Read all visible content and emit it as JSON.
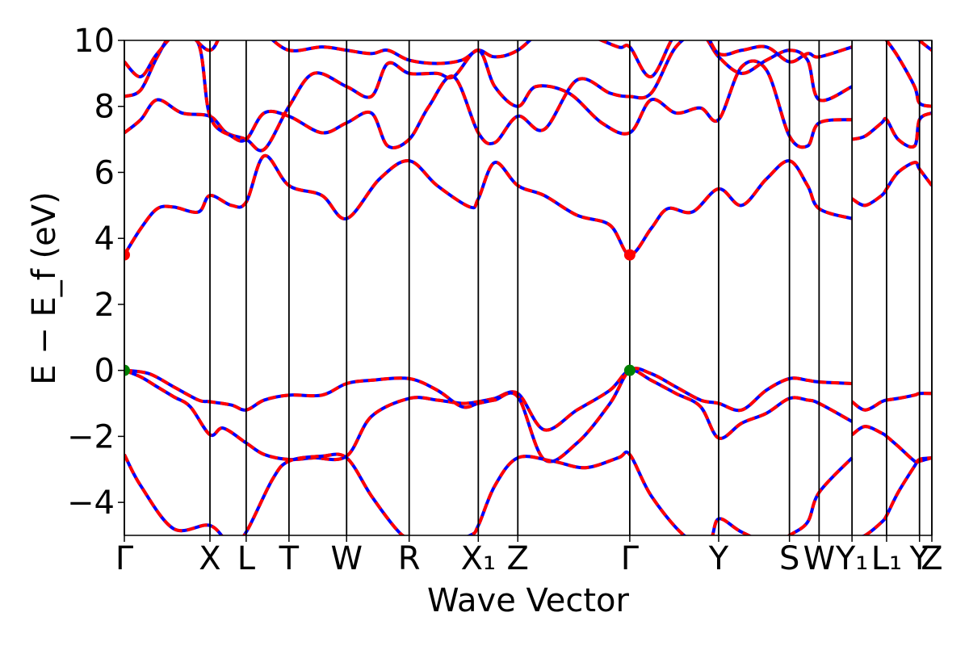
{
  "chart_data": {
    "type": "line",
    "xlabel": "Wave Vector",
    "ylabel": "E − E_f (eV)",
    "ylim": [
      -5,
      10
    ],
    "y_ticks": [
      -4,
      -2,
      0,
      2,
      4,
      6,
      8,
      10
    ],
    "y_tick_labels": [
      "−4",
      "−2",
      "0",
      "2",
      "4",
      "6",
      "8",
      "10"
    ],
    "xlim": [
      0,
      4.905
    ],
    "kpoints": [
      {
        "label": "Γ",
        "x": 0.0
      },
      {
        "label": "X",
        "x": 0.52
      },
      {
        "label": "L",
        "x": 0.74
      },
      {
        "label": "T",
        "x": 1.0
      },
      {
        "label": "W",
        "x": 1.35
      },
      {
        "label": "R",
        "x": 1.73
      },
      {
        "label": "X₁",
        "x": 2.15
      },
      {
        "label": "Z",
        "x": 2.39
      },
      {
        "label": "Γ",
        "x": 3.07
      },
      {
        "label": "Y",
        "x": 3.61
      },
      {
        "label": "S",
        "x": 4.04
      },
      {
        "label": "W",
        "x": 4.22
      },
      {
        "label": "Y₁",
        "x": 4.42
      },
      {
        "label": "L₁",
        "x": 4.63
      },
      {
        "label": "Y",
        "x": 4.83
      },
      {
        "label": "Z",
        "x": 4.905
      }
    ],
    "segment_breaks": [
      4.42
    ],
    "grid": false,
    "colors": {
      "band_solid": "#0000ff",
      "band_dashed": "#ff0000",
      "cbm_marker": "#ff0000",
      "vbm_marker": "#008000",
      "kpath_line": "#000000"
    },
    "series": [
      {
        "x": [
          0,
          0.1,
          0.2,
          0.3,
          0.4,
          0.52,
          0.6,
          0.74,
          0.85,
          1.0,
          1.15,
          1.35,
          1.5,
          1.73,
          1.9,
          2.05,
          2.15,
          2.25,
          2.39,
          2.55,
          2.75,
          2.95,
          3.07,
          3.2,
          3.35,
          3.5,
          3.61,
          3.75,
          3.9,
          4.04,
          4.15,
          4.22,
          4.42
        ],
        "values": [
          0.0,
          -0.2,
          -0.5,
          -0.8,
          -1.1,
          -1.95,
          -1.75,
          -2.2,
          -2.55,
          -2.7,
          -2.65,
          -2.6,
          -1.4,
          -0.85,
          -0.9,
          -1.0,
          -0.95,
          -0.85,
          -0.7,
          -1.8,
          -1.2,
          -0.6,
          0.0,
          -0.3,
          -0.7,
          -1.1,
          -2.05,
          -1.6,
          -1.3,
          -0.85,
          -0.9,
          -1.0,
          -1.55
        ]
      },
      {
        "x": [
          0,
          0.15,
          0.3,
          0.45,
          0.52,
          0.65,
          0.74,
          0.85,
          1.0,
          1.2,
          1.35,
          1.5,
          1.73,
          1.9,
          2.05,
          2.15,
          2.25,
          2.39,
          2.55,
          2.75,
          2.95,
          3.07,
          3.2,
          3.35,
          3.5,
          3.61,
          3.75,
          3.9,
          4.04,
          4.15,
          4.22,
          4.42
        ],
        "values": [
          0.0,
          -0.1,
          -0.5,
          -0.9,
          -0.95,
          -1.05,
          -1.2,
          -0.9,
          -0.75,
          -0.75,
          -0.4,
          -0.3,
          -0.25,
          -0.6,
          -1.1,
          -1.0,
          -0.9,
          -0.8,
          -2.7,
          -2.2,
          -1.0,
          0.0,
          -0.1,
          -0.5,
          -0.9,
          -1.0,
          -1.2,
          -0.6,
          -0.25,
          -0.3,
          -0.35,
          -0.4
        ]
      },
      {
        "x": [
          0,
          0.1,
          0.2,
          0.3,
          0.45,
          0.52,
          0.65,
          0.74,
          0.85,
          1.0,
          1.2,
          1.35,
          1.55,
          1.73,
          1.9,
          2.1,
          2.15,
          2.25,
          2.39,
          2.55,
          2.75,
          2.95,
          3.07,
          3.2,
          3.3,
          3.45,
          3.61,
          3.75,
          3.9,
          4.04,
          4.15,
          4.22,
          4.42
        ],
        "values": [
          3.5,
          4.3,
          4.9,
          4.95,
          4.8,
          5.3,
          5.0,
          5.1,
          6.5,
          5.6,
          5.3,
          4.6,
          5.8,
          6.35,
          5.6,
          4.95,
          5.2,
          6.3,
          5.6,
          5.3,
          4.7,
          4.4,
          3.5,
          4.3,
          4.9,
          4.8,
          5.5,
          5.0,
          5.8,
          6.35,
          5.6,
          4.9,
          4.6
        ]
      },
      {
        "x": [
          0,
          0.1,
          0.2,
          0.35,
          0.52,
          0.62,
          0.74,
          0.85,
          1.0,
          1.15,
          1.35,
          1.5,
          1.6,
          1.73,
          1.9,
          2.0,
          2.15,
          2.25,
          2.39,
          2.5,
          2.7,
          2.9,
          3.07,
          3.2,
          3.35,
          3.5,
          3.61,
          3.75,
          3.9,
          4.04,
          4.15,
          4.22,
          4.42
        ],
        "values": [
          7.2,
          7.6,
          8.2,
          7.8,
          7.7,
          7.2,
          7.0,
          6.7,
          8.0,
          9.0,
          8.6,
          8.3,
          9.3,
          9.0,
          9.0,
          8.9,
          9.7,
          8.6,
          8.0,
          8.6,
          8.4,
          7.5,
          7.2,
          8.2,
          7.8,
          7.95,
          7.6,
          9.2,
          9.1,
          7.1,
          6.8,
          7.5,
          7.6
        ]
      },
      {
        "x": [
          0,
          0.1,
          0.2,
          0.3,
          0.45,
          0.52,
          0.65,
          0.74,
          0.85,
          1.0,
          1.2,
          1.35,
          1.5,
          1.6,
          1.73,
          1.85,
          2.0,
          2.15,
          2.25,
          2.39,
          2.55,
          2.75,
          2.95,
          3.07,
          3.2,
          3.35,
          3.5,
          3.61,
          3.75,
          3.9,
          4.04,
          4.15,
          4.22,
          4.42
        ],
        "values": [
          8.3,
          8.5,
          9.5,
          10.2,
          9.9,
          7.7,
          7.1,
          7.0,
          7.8,
          7.7,
          7.2,
          7.5,
          7.8,
          6.8,
          7.0,
          8.0,
          8.9,
          7.2,
          6.9,
          7.7,
          7.3,
          8.8,
          8.4,
          8.3,
          8.4,
          9.8,
          10.2,
          9.5,
          9.0,
          9.4,
          9.7,
          9.4,
          8.2,
          8.6
        ]
      },
      {
        "x": [
          0,
          0.1,
          0.2,
          0.35,
          0.52,
          0.62,
          0.74,
          0.85,
          1.0,
          1.2,
          1.35,
          1.5,
          1.6,
          1.73,
          1.9,
          2.05,
          2.15,
          2.25,
          2.39,
          2.6,
          2.8,
          3.0,
          3.07,
          3.2,
          3.35,
          3.5,
          3.61,
          3.75,
          3.9,
          4.04,
          4.15,
          4.22,
          4.42
        ],
        "values": [
          9.35,
          8.9,
          9.6,
          10.3,
          9.7,
          10.5,
          10.4,
          10.2,
          9.7,
          9.8,
          9.7,
          9.6,
          9.7,
          9.4,
          9.3,
          9.4,
          9.7,
          9.5,
          9.7,
          10.5,
          10.2,
          9.8,
          9.8,
          8.9,
          10.2,
          10.4,
          9.6,
          9.7,
          9.8,
          9.35,
          9.6,
          9.5,
          9.8
        ]
      },
      {
        "x": [
          0,
          0.1,
          0.3,
          0.52,
          0.65,
          0.74,
          0.9,
          1.0,
          1.2,
          1.35,
          1.5,
          1.65,
          1.73,
          1.9,
          2.1,
          2.15,
          2.25,
          2.39,
          2.6,
          2.8,
          3.0,
          3.07,
          3.2,
          3.4,
          3.55,
          3.61,
          3.75,
          3.95,
          4.04,
          4.15,
          4.22,
          4.42
        ],
        "values": [
          -2.55,
          -3.5,
          -4.8,
          -4.7,
          -5.3,
          -4.9,
          -3.3,
          -2.75,
          -2.6,
          -2.65,
          -3.8,
          -4.8,
          -5.1,
          -5.3,
          -5.0,
          -4.7,
          -3.5,
          -2.65,
          -2.75,
          -2.95,
          -2.65,
          -2.55,
          -3.8,
          -5.0,
          -5.2,
          -4.5,
          -4.9,
          -5.3,
          -5.0,
          -4.6,
          -3.7,
          -2.65
        ]
      },
      {
        "x": [
          4.42,
          4.5,
          4.6,
          4.63,
          4.7,
          4.8,
          4.83,
          4.905
        ],
        "values": [
          -0.95,
          -1.2,
          -0.95,
          -0.9,
          -0.85,
          -0.75,
          -0.7,
          -0.7
        ]
      },
      {
        "x": [
          4.42,
          4.5,
          4.6,
          4.63,
          4.7,
          4.8,
          4.83,
          4.905
        ],
        "values": [
          -1.95,
          -1.7,
          -1.9,
          -2.0,
          -2.3,
          -2.75,
          -2.75,
          -2.65
        ]
      },
      {
        "x": [
          4.42,
          4.5,
          4.6,
          4.63,
          4.7,
          4.8,
          4.83,
          4.905
        ],
        "values": [
          -5.1,
          -5.0,
          -4.6,
          -4.4,
          -3.7,
          -2.9,
          -2.7,
          -2.65
        ]
      },
      {
        "x": [
          4.42,
          4.5,
          4.6,
          4.63,
          4.7,
          4.8,
          4.83,
          4.905
        ],
        "values": [
          5.2,
          5.0,
          5.3,
          5.5,
          6.0,
          6.3,
          6.1,
          5.6
        ]
      },
      {
        "x": [
          4.42,
          4.5,
          4.6,
          4.63,
          4.7,
          4.8,
          4.83,
          4.905
        ],
        "values": [
          7.0,
          7.1,
          7.5,
          7.6,
          7.0,
          6.8,
          7.6,
          7.8
        ]
      },
      {
        "x": [
          4.42,
          4.5,
          4.6,
          4.63,
          4.7,
          4.8,
          4.83,
          4.905
        ],
        "values": [
          10.5,
          10.4,
          10.2,
          10.0,
          9.5,
          8.6,
          8.1,
          8.0
        ]
      },
      {
        "x": [
          4.42,
          4.5,
          4.6,
          4.63,
          4.7,
          4.8,
          4.83,
          4.905
        ],
        "values": [
          11.0,
          10.8,
          10.6,
          10.5,
          10.4,
          10.2,
          10.0,
          9.7
        ]
      }
    ],
    "markers": [
      {
        "x": 0.0,
        "y": 3.5,
        "kind": "cbm"
      },
      {
        "x": 3.07,
        "y": 3.5,
        "kind": "cbm"
      },
      {
        "x": 0.0,
        "y": 0.0,
        "kind": "vbm"
      },
      {
        "x": 3.07,
        "y": 0.0,
        "kind": "vbm"
      }
    ]
  }
}
